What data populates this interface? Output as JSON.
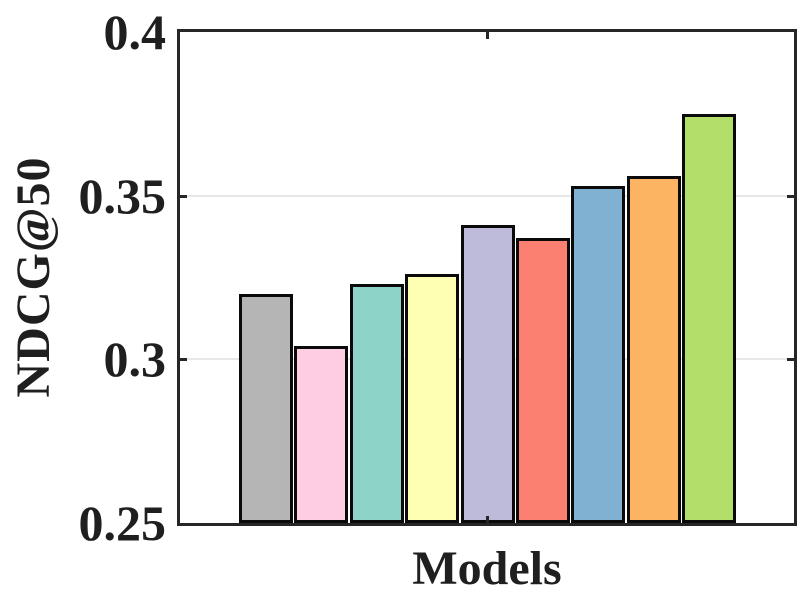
{
  "chart_data": {
    "type": "bar",
    "title": "",
    "xlabel": "Models",
    "ylabel": "NDCG@50",
    "values": [
      0.32,
      0.304,
      0.323,
      0.326,
      0.341,
      0.337,
      0.353,
      0.356,
      0.375
    ],
    "bar_colors": [
      "#b5b5b5",
      "#fccde3",
      "#8dd3c7",
      "#ffffb3",
      "#bebada",
      "#fb8072",
      "#80b1d3",
      "#fdb462",
      "#b3de69"
    ],
    "bar_edge_color": "#0a0a0a",
    "ylim": [
      0.25,
      0.4
    ],
    "ytick_values": [
      0.25,
      0.3,
      0.35,
      0.4
    ],
    "ytick_labels": [
      "0.25",
      "0.3",
      "0.35",
      "0.4"
    ],
    "x_tick_fractions": [
      0.5
    ],
    "grid": "horizontal",
    "grid_color": "#e7e7e7",
    "axis_color": "#262626",
    "text_color": "#1f1f1f",
    "background": "#ffffff",
    "legend": "none"
  }
}
